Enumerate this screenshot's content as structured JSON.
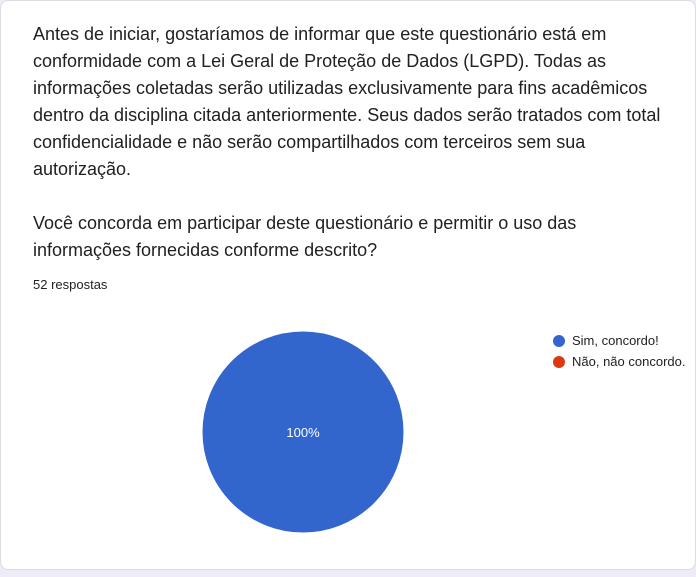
{
  "question": {
    "text": "Antes de iniciar, gostaríamos de informar que este questionário está em conformidade com a Lei Geral de Proteção de Dados (LGPD). Todas as informações coletadas serão utilizadas exclusivamente para fins acadêmicos dentro da disciplina citada anteriormente. Seus dados serão tratados com total confidencialidade e não serão compartilhados com terceiros sem sua autorização.\n\nVocê concorda em participar deste questionário e permitir o uso das informações fornecidas conforme descrito?",
    "responses": "52 respostas"
  },
  "chart_data": {
    "type": "pie",
    "categories": [
      "Sim, concordo!",
      "Não, não concordo."
    ],
    "values": [
      100,
      0
    ],
    "colors": [
      "#3366cc",
      "#dc3912"
    ],
    "slice_labels": [
      "100%",
      ""
    ],
    "legend_position": "right"
  }
}
